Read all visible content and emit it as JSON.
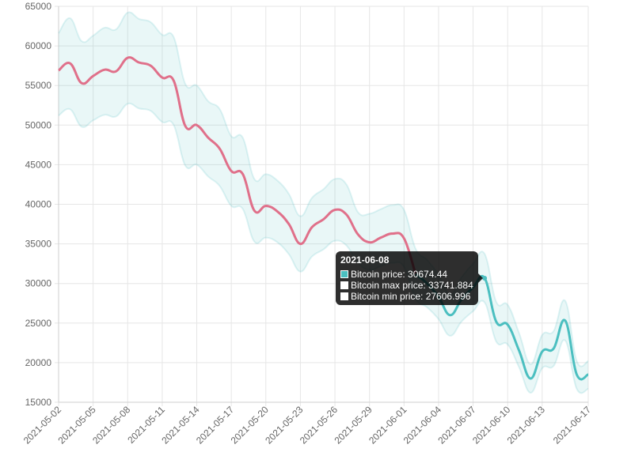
{
  "chart_data": {
    "type": "line",
    "ylim": [
      15000,
      65000
    ],
    "y_ticks": [
      15000,
      20000,
      25000,
      30000,
      35000,
      40000,
      45000,
      50000,
      55000,
      60000,
      65000
    ],
    "x": [
      "2021-05-02",
      "2021-05-03",
      "2021-05-04",
      "2021-05-05",
      "2021-05-06",
      "2021-05-07",
      "2021-05-08",
      "2021-05-09",
      "2021-05-10",
      "2021-05-11",
      "2021-05-12",
      "2021-05-13",
      "2021-05-14",
      "2021-05-15",
      "2021-05-16",
      "2021-05-17",
      "2021-05-18",
      "2021-05-19",
      "2021-05-20",
      "2021-05-21",
      "2021-05-22",
      "2021-05-23",
      "2021-05-24",
      "2021-05-25",
      "2021-05-26",
      "2021-05-27",
      "2021-05-28",
      "2021-05-29",
      "2021-05-30",
      "2021-05-31",
      "2021-06-01",
      "2021-06-02",
      "2021-06-03",
      "2021-06-04",
      "2021-06-05",
      "2021-06-06",
      "2021-06-07",
      "2021-06-08",
      "2021-06-09",
      "2021-06-10",
      "2021-06-11",
      "2021-06-12",
      "2021-06-13",
      "2021-06-14",
      "2021-06-15",
      "2021-06-16",
      "2021-06-17"
    ],
    "x_tick_labels": [
      "2021-05-02",
      "2021-05-05",
      "2021-05-08",
      "2021-05-11",
      "2021-05-14",
      "2021-05-17",
      "2021-05-20",
      "2021-05-23",
      "2021-05-26",
      "2021-05-29",
      "2021-06-01",
      "2021-06-04",
      "2021-06-07",
      "2021-06-10",
      "2021-06-13",
      "2021-06-17"
    ],
    "grid": true,
    "series": [
      {
        "name": "Bitcoin price",
        "color": "#e0708a",
        "values": [
          56900,
          57800,
          55300,
          56200,
          57000,
          56800,
          58500,
          57900,
          57500,
          56000,
          55600,
          49900,
          50000,
          48400,
          47000,
          44200,
          43800,
          39200,
          39800,
          39100,
          37500,
          35000,
          37100,
          38100,
          39300,
          38700,
          36200,
          35200,
          35800,
          36300,
          35700,
          31200,
          null,
          null,
          null,
          null,
          null,
          null,
          null,
          null,
          null,
          null,
          null,
          null,
          null,
          null,
          null
        ]
      },
      {
        "name": "Bitcoin price",
        "color": "#4bbfc0",
        "values": [
          null,
          null,
          null,
          null,
          null,
          null,
          null,
          null,
          null,
          null,
          null,
          null,
          null,
          null,
          null,
          null,
          null,
          null,
          null,
          null,
          null,
          null,
          null,
          null,
          null,
          null,
          null,
          null,
          null,
          null,
          null,
          31200,
          30000,
          28300,
          26000,
          28000,
          29500,
          30674.44,
          25200,
          24800,
          21500,
          18000,
          21400,
          21800,
          25300,
          18500,
          18500
        ]
      },
      {
        "name": "Bitcoin max price",
        "color": "#4bbfc0",
        "values": [
          61600,
          63500,
          60600,
          61300,
          62300,
          62100,
          64200,
          63400,
          63000,
          61400,
          61100,
          55200,
          55000,
          53000,
          52000,
          48600,
          48400,
          43200,
          43800,
          43000,
          41300,
          38500,
          40800,
          41900,
          43200,
          42500,
          39000,
          38800,
          39400,
          39900,
          39300,
          34400,
          33000,
          31100,
          28600,
          30800,
          32500,
          33741.884,
          27700,
          27300,
          23700,
          19800,
          23500,
          24000,
          27800,
          20200,
          20200
        ]
      },
      {
        "name": "Bitcoin min price",
        "color": "#4bbfc0",
        "values": [
          51200,
          52000,
          49800,
          50600,
          51300,
          51100,
          52700,
          52100,
          51800,
          50400,
          50000,
          44900,
          45000,
          43500,
          42300,
          39800,
          39400,
          35300,
          35800,
          35200,
          33700,
          31500,
          33400,
          34300,
          35400,
          34800,
          32600,
          31700,
          32200,
          32600,
          32100,
          28100,
          27000,
          25500,
          23400,
          25200,
          26500,
          27606.996,
          22700,
          22300,
          19400,
          16200,
          19300,
          19600,
          22800,
          16700,
          16700
        ]
      }
    ],
    "tooltip": {
      "title": "2021-06-08",
      "lines": [
        {
          "label": "Bitcoin price: 30674.44",
          "swatch": "#4bbfc0"
        },
        {
          "label": "Bitcoin max price: 33741.884",
          "swatch": "#ffffff"
        },
        {
          "label": "Bitcoin min price: 27606.996",
          "swatch": "#ffffff"
        }
      ]
    }
  }
}
